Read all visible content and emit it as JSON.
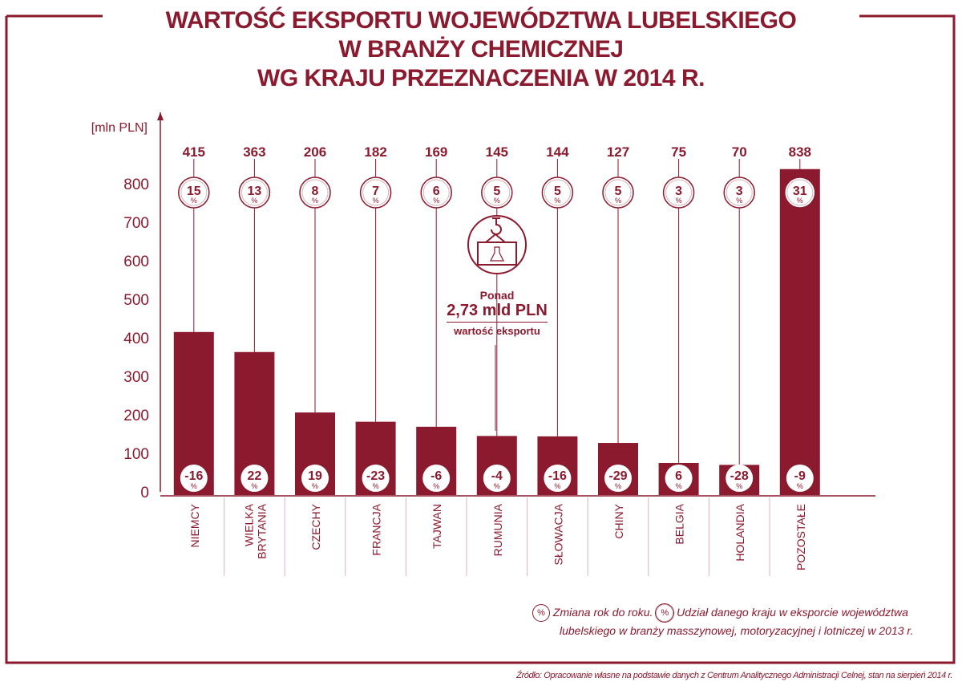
{
  "title": [
    "WARTOŚĆ EKSPORTU WOJEWÓDZTWA LUBELSKIEGO",
    "W BRANŻY CHEMICZNEJ",
    "WG KRAJU PRZEZNACZENIA W 2014 R."
  ],
  "info": {
    "line1": "Ponad",
    "line2": "2,73 mld PLN",
    "line3": "wartość eksportu",
    "icon": "crane-hook-flask-icon"
  },
  "legend": {
    "symbol": "%",
    "change_label": "Zmiana rok do roku.",
    "share_label": "Udział danego kraju w eksporcie województwa",
    "share_label_2": "lubelskiego  w branży masszynowej, motoryzacyjnej i lotniczej w 2013 r."
  },
  "source": "Źródło: Opracowanie własne na podstawie danych z Centrum Analitycznego Administracji Celnej, stan na sierpień 2014 r.",
  "colors": {
    "accent": "#8b1a2f",
    "divider": "#d9b3bb"
  },
  "chart_data": {
    "type": "bar",
    "title": "WARTOŚĆ EKSPORTU WOJEWÓDZTWA LUBELSKIEGO W BRANŻY CHEMICZNEJ WG KRAJU PRZEZNACZENIA W 2014 R.",
    "ylabel": "[mln PLN]",
    "xlabel": "",
    "ylim": [
      0,
      800
    ],
    "yticks": [
      0,
      100,
      200,
      300,
      400,
      500,
      600,
      700,
      800
    ],
    "categories": [
      "NIEMCY",
      "WIELKA BRYTANIA",
      "CZECHY",
      "FRANCJA",
      "TAJWAN",
      "RUMUNIA",
      "SŁOWACJA",
      "CHINY",
      "BELGIA",
      "HOLANDIA",
      "POZOSTAŁE"
    ],
    "values": [
      415,
      363,
      206,
      182,
      169,
      145,
      144,
      127,
      75,
      70,
      838
    ],
    "share_pct": [
      15,
      13,
      8,
      7,
      6,
      5,
      5,
      5,
      3,
      3,
      31
    ],
    "change_pct": [
      -16,
      22,
      19,
      -23,
      -6,
      -4,
      -16,
      -29,
      6,
      -28,
      -9
    ],
    "percent_sign": "%",
    "grid": false
  }
}
